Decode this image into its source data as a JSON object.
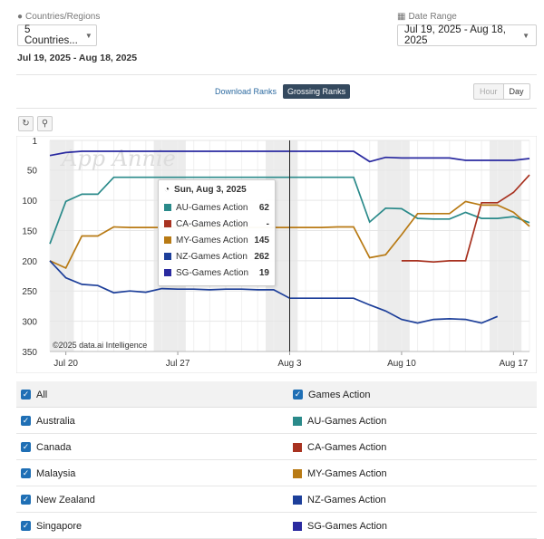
{
  "filters": {
    "countries_label": "Countries/Regions",
    "countries_value": "5 Countries...",
    "date_label": "Date Range",
    "date_value": "Jul 19, 2025 - Aug 18, 2025",
    "date_subtitle": "Jul 19, 2025 - Aug 18, 2025"
  },
  "tabs": [
    "Download Ranks",
    "Grossing Ranks"
  ],
  "granularity": [
    "Hour",
    "Day"
  ],
  "watermark": "App Annie",
  "copyright": "©2025 data.ai Intelligence",
  "tooltip": {
    "title": "Sun, Aug 3, 2025",
    "rows": [
      {
        "name": "AU-Games Action",
        "value": "62",
        "color": "#2a8a8a"
      },
      {
        "name": "CA-Games Action",
        "value": "-",
        "color": "#a83220"
      },
      {
        "name": "MY-Games Action",
        "value": "145",
        "color": "#b87a14"
      },
      {
        "name": "NZ-Games Action",
        "value": "262",
        "color": "#1d3f9a"
      },
      {
        "name": "SG-Games Action",
        "value": "19",
        "color": "#2a2aa0"
      }
    ]
  },
  "legend": {
    "all": "All",
    "countries": [
      "Australia",
      "Canada",
      "Malaysia",
      "New Zealand",
      "Singapore"
    ],
    "category": "Games Action",
    "series": [
      "AU-Games Action",
      "CA-Games Action",
      "MY-Games Action",
      "NZ-Games Action",
      "SG-Games Action"
    ]
  },
  "chart_data": {
    "type": "line",
    "title": "Grossing Ranks",
    "x_start": "Jul 19",
    "x_end": "Aug 18",
    "x_tick_labels": [
      {
        "index": 1,
        "label": "Jul 20"
      },
      {
        "index": 8,
        "label": "Jul 27"
      },
      {
        "index": 15,
        "label": "Aug 3"
      },
      {
        "index": 22,
        "label": "Aug 10"
      },
      {
        "index": 29,
        "label": "Aug 17"
      }
    ],
    "y_ticks": [
      1,
      50,
      100,
      150,
      200,
      250,
      300,
      350
    ],
    "ylim": [
      1,
      350
    ],
    "y_inverted": true,
    "weekend_index_pairs": [
      [
        0,
        1
      ],
      [
        7,
        8
      ],
      [
        14,
        15
      ],
      [
        21,
        22
      ],
      [
        28,
        29
      ]
    ],
    "cursor_index": 15,
    "series": [
      {
        "name": "AU-Games Action",
        "color": "#2a8a8a",
        "values": [
          172,
          102,
          90,
          90,
          62,
          62,
          62,
          62,
          62,
          62,
          62,
          62,
          62,
          62,
          62,
          62,
          62,
          62,
          62,
          62,
          136,
          113,
          114,
          130,
          131,
          131,
          120,
          130,
          130,
          127,
          137
        ]
      },
      {
        "name": "CA-Games Action",
        "color": "#a83220",
        "values": [
          null,
          null,
          null,
          null,
          null,
          null,
          null,
          null,
          null,
          null,
          null,
          null,
          null,
          null,
          null,
          null,
          null,
          null,
          null,
          null,
          null,
          null,
          200,
          200,
          202,
          200,
          200,
          104,
          104,
          87,
          58
        ]
      },
      {
        "name": "MY-Games Action",
        "color": "#b87a14",
        "values": [
          200,
          212,
          159,
          159,
          144,
          145,
          145,
          145,
          145,
          145,
          145,
          145,
          145,
          145,
          145,
          145,
          145,
          145,
          144,
          144,
          195,
          190,
          157,
          122,
          122,
          122,
          102,
          108,
          108,
          120,
          143
        ]
      },
      {
        "name": "NZ-Games Action",
        "color": "#1d3f9a",
        "values": [
          200,
          228,
          239,
          241,
          253,
          250,
          252,
          246,
          247,
          247,
          248,
          247,
          247,
          248,
          248,
          262,
          262,
          262,
          262,
          262,
          273,
          283,
          297,
          303,
          297,
          296,
          297,
          303,
          292,
          null,
          null
        ]
      },
      {
        "name": "SG-Games Action",
        "color": "#2a2aa0",
        "values": [
          26,
          21,
          19,
          19,
          19,
          19,
          19,
          19,
          19,
          19,
          19,
          19,
          19,
          19,
          19,
          19,
          19,
          19,
          19,
          19,
          36,
          29,
          30,
          30,
          30,
          30,
          34,
          34,
          34,
          34,
          31
        ]
      }
    ]
  }
}
